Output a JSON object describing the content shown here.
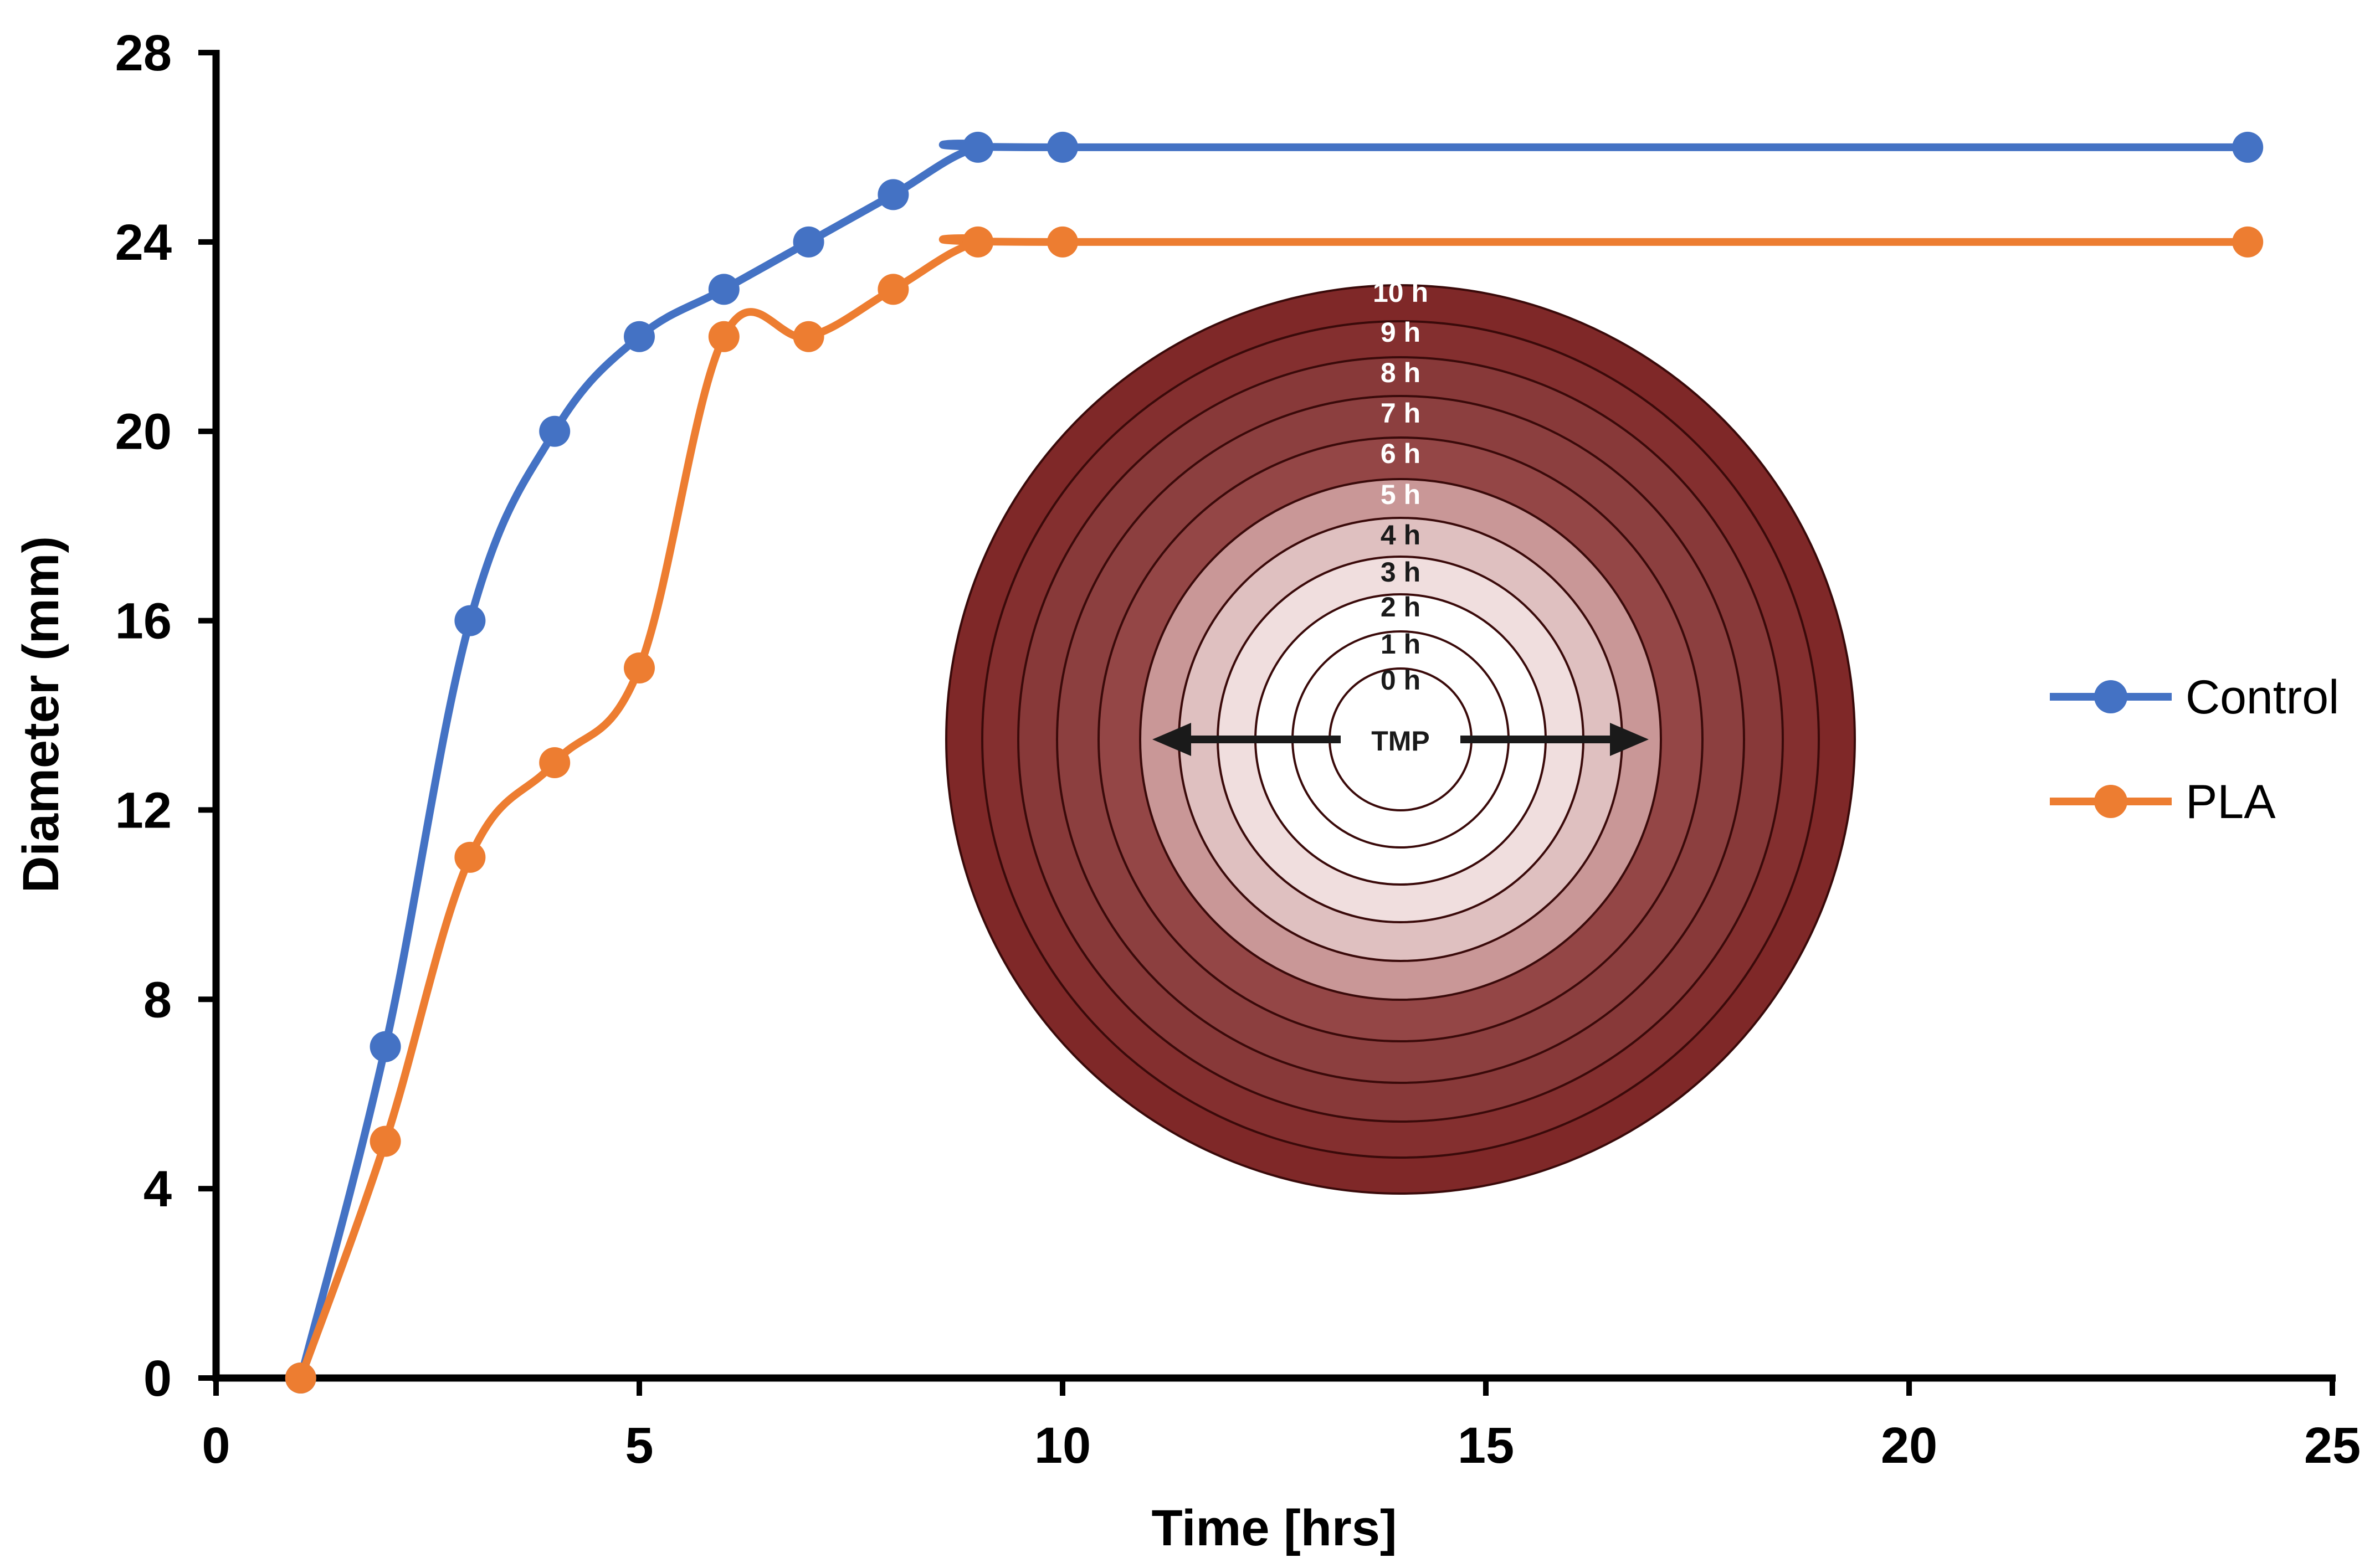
{
  "chart_data": {
    "type": "line",
    "title": "",
    "xlabel": "Time [hrs]",
    "ylabel": "Diameter (mm)",
    "xlim": [
      0,
      25
    ],
    "ylim": [
      0,
      28
    ],
    "xticks": [
      0,
      5,
      10,
      15,
      20,
      25
    ],
    "yticks": [
      0,
      4,
      8,
      12,
      16,
      20,
      24,
      28
    ],
    "grid": false,
    "legend_position": "right",
    "series": [
      {
        "name": "Control",
        "color": "#4472C4",
        "x": [
          1,
          2,
          3,
          4,
          5,
          6,
          7,
          8,
          9,
          10,
          24
        ],
        "y": [
          0,
          7,
          16,
          20,
          22,
          23,
          24,
          25,
          26,
          26,
          26
        ]
      },
      {
        "name": "PLA",
        "color": "#ED7D31",
        "x": [
          1,
          2,
          3,
          4,
          5,
          6,
          7,
          8,
          9,
          10,
          24
        ],
        "y": [
          0,
          5,
          11,
          13,
          15,
          22,
          22,
          23,
          24,
          24,
          24
        ]
      }
    ],
    "inset": {
      "description_label": "TMP",
      "ring_labels": [
        "0 h",
        "1 h",
        "2 h",
        "3 h",
        "4 h",
        "5 h",
        "6 h",
        "7 h",
        "8 h",
        "9 h",
        "10 h"
      ],
      "ring_colors": [
        "#ffffff",
        "#ffffff",
        "#ffffff",
        "#f0dede",
        "#dfc0c0",
        "#c99797",
        "#944646",
        "#8c3f3f",
        "#883939",
        "#842f2f",
        "#7f2828"
      ]
    }
  }
}
